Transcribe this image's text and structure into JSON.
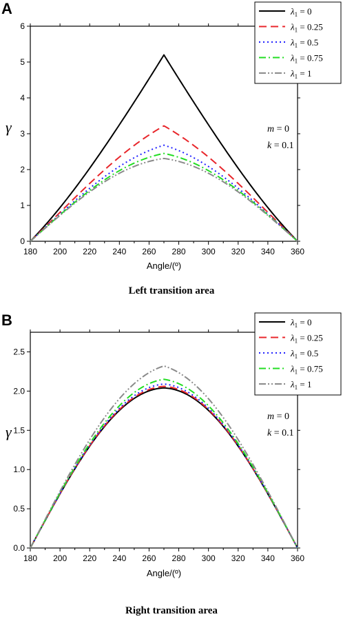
{
  "chart_data": [
    {
      "panel": "A",
      "type": "line",
      "caption": "Left transition area",
      "xlabel": "Angle/(º)",
      "ylabel": "γ",
      "xlim": [
        180,
        360
      ],
      "ylim": [
        0,
        6
      ],
      "xticks": [
        "180",
        "200",
        "220",
        "240",
        "260",
        "280",
        "300",
        "320",
        "340",
        "360"
      ],
      "yticks": [
        "0",
        "1",
        "2",
        "3",
        "4",
        "5",
        "6"
      ],
      "legend_position": "top-right",
      "annotations": [
        {
          "name": "m",
          "text": " = 0"
        },
        {
          "name": "k",
          "text": " = 0.1"
        }
      ],
      "series": [
        {
          "name": "λ₁ = 0",
          "sym": "λ",
          "sub": "1",
          "suffix": " = 0",
          "peak": 5.2,
          "color": "#000000",
          "dash": ""
        },
        {
          "name": "λ₁ = 0.25",
          "sym": "λ",
          "sub": "1",
          "suffix": " = 0.25",
          "peak": 3.22,
          "color": "#e8262b",
          "dash": "11,6"
        },
        {
          "name": "λ₁ = 0.5",
          "sym": "λ",
          "sub": "1",
          "suffix": " = 0.5",
          "peak": 2.68,
          "color": "#1f1fff",
          "dash": "2,4"
        },
        {
          "name": "λ₁ = 0.75",
          "sym": "λ",
          "sub": "1",
          "suffix": " = 0.75",
          "peak": 2.45,
          "color": "#22dd22",
          "dash": "10,4,2,4"
        },
        {
          "name": "λ₁ = 1",
          "sym": "λ",
          "sub": "1",
          "suffix": " = 1",
          "peak": 2.31,
          "color": "#8a8a8a",
          "dash": "10,3,2,3,2,3"
        }
      ]
    },
    {
      "panel": "B",
      "type": "line",
      "caption": "Right transition area",
      "xlabel": "Angle/(º)",
      "ylabel": "γ",
      "xlim": [
        180,
        360
      ],
      "ylim": [
        0,
        2.75
      ],
      "xticks": [
        "180",
        "200",
        "220",
        "240",
        "260",
        "280",
        "300",
        "320",
        "340",
        "360"
      ],
      "yticks": [
        "0.0",
        "0.5",
        "1.0",
        "1.5",
        "2.0",
        "2.5"
      ],
      "legend_position": "top-right",
      "annotations": [
        {
          "name": "m",
          "text": " = 0"
        },
        {
          "name": "k",
          "text": " = 0.1"
        }
      ],
      "series": [
        {
          "name": "λ₁ = 0",
          "sym": "λ",
          "sub": "1",
          "suffix": " = 0",
          "peak": 2.04,
          "color": "#000000",
          "dash": ""
        },
        {
          "name": "λ₁ = 0.25",
          "sym": "λ",
          "sub": "1",
          "suffix": " = 0.25",
          "peak": 2.06,
          "color": "#e8262b",
          "dash": "11,6"
        },
        {
          "name": "λ₁ = 0.5",
          "sym": "λ",
          "sub": "1",
          "suffix": " = 0.5",
          "peak": 2.09,
          "color": "#1f1fff",
          "dash": "2,4"
        },
        {
          "name": "λ₁ = 0.75",
          "sym": "λ",
          "sub": "1",
          "suffix": " = 0.75",
          "peak": 2.15,
          "color": "#22dd22",
          "dash": "10,4,2,4"
        },
        {
          "name": "λ₁ = 1",
          "sym": "λ",
          "sub": "1",
          "suffix": " = 1",
          "peak": 2.32,
          "color": "#8a8a8a",
          "dash": "10,3,2,3,2,3"
        }
      ]
    }
  ]
}
